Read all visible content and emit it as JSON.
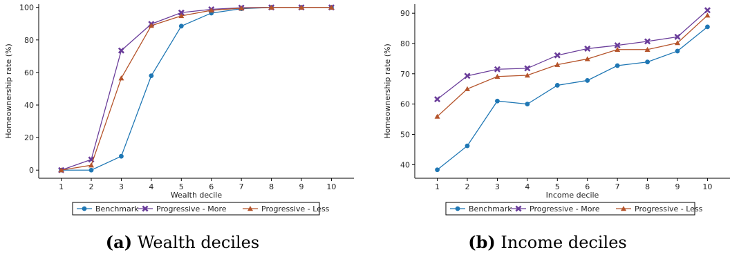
{
  "chart_data": [
    {
      "type": "line",
      "xlabel": "Wealth decile",
      "ylabel": "Homeownership rate (%)",
      "x": [
        1,
        2,
        3,
        4,
        5,
        6,
        7,
        8,
        9,
        10
      ],
      "ylim": [
        -5,
        102
      ],
      "yticks": [
        0,
        20,
        40,
        60,
        80,
        100
      ],
      "series": [
        {
          "name": "Benchmark",
          "color": "#1f77b4",
          "marker": "circle",
          "values": [
            0,
            0,
            8.5,
            58,
            88.5,
            96.5,
            99.2,
            100,
            100,
            100
          ]
        },
        {
          "name": "Progressive - More",
          "color": "#6a3d9a",
          "marker": "x",
          "values": [
            0,
            6.5,
            73.5,
            89.8,
            96.8,
            98.8,
            99.8,
            100,
            100,
            100
          ]
        },
        {
          "name": "Progressive - Less",
          "color": "#b5542b",
          "marker": "triangle",
          "values": [
            0,
            3,
            56.5,
            88.8,
            94.8,
            98.2,
            99.5,
            100,
            100,
            100
          ]
        }
      ],
      "legend": "bottom",
      "caption": {
        "tag": "(a)",
        "text": "Wealth deciles"
      }
    },
    {
      "type": "line",
      "xlabel": "Income decile",
      "ylabel": "Homeownership rate (%)",
      "x": [
        1,
        2,
        3,
        4,
        5,
        6,
        7,
        8,
        9,
        10
      ],
      "ylim": [
        35.5,
        93
      ],
      "yticks": [
        40,
        50,
        60,
        70,
        80,
        90
      ],
      "series": [
        {
          "name": "Benchmark",
          "color": "#1f77b4",
          "marker": "circle",
          "values": [
            38.3,
            46.2,
            61,
            60,
            66.2,
            67.8,
            72.7,
            73.9,
            77.5,
            85.5
          ]
        },
        {
          "name": "Progressive - More",
          "color": "#6a3d9a",
          "marker": "x",
          "values": [
            61.6,
            69.3,
            71.5,
            71.8,
            76.1,
            78.3,
            79.4,
            80.7,
            82.2,
            91
          ]
        },
        {
          "name": "Progressive - Less",
          "color": "#b5542b",
          "marker": "triangle",
          "values": [
            55.9,
            65,
            69.1,
            69.5,
            73,
            74.9,
            78,
            78,
            80.2,
            89.3
          ]
        }
      ],
      "legend": "bottom",
      "caption": {
        "tag": "(b)",
        "text": "Income deciles"
      }
    }
  ]
}
